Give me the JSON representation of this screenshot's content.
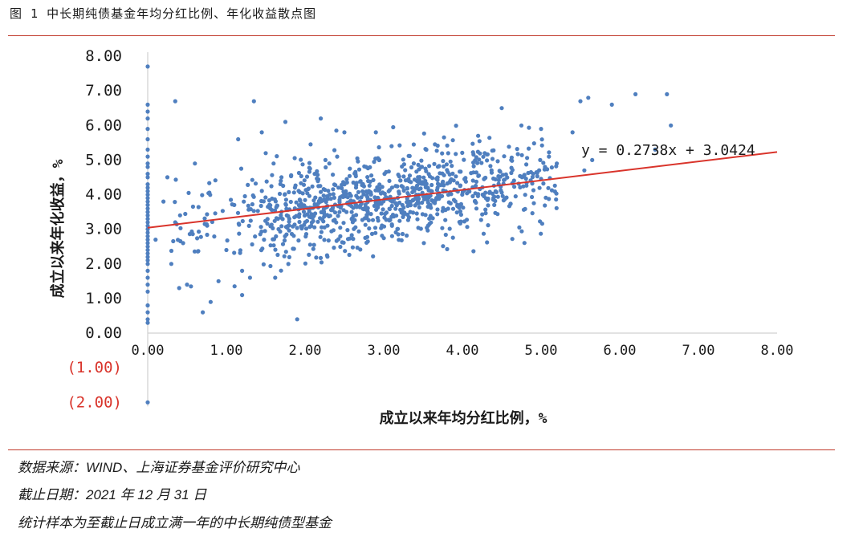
{
  "header": {
    "figure_title": "图 1 中长期纯债基金年均分红比例、年化收益散点图"
  },
  "chart_data": {
    "type": "scatter",
    "title": "图 1 中长期纯债基金年均分红比例、年化收益散点图",
    "xlabel": "成立以来年均分红比例，%",
    "ylabel": "成立以来年化收益，%",
    "xlim": [
      0,
      8
    ],
    "ylim": [
      -2,
      8
    ],
    "x_ticks": [
      "0.00",
      "1.00",
      "2.00",
      "3.00",
      "4.00",
      "5.00",
      "6.00",
      "7.00",
      "8.00"
    ],
    "y_ticks": [
      "8.00",
      "7.00",
      "6.00",
      "5.00",
      "4.00",
      "3.00",
      "2.00",
      "1.00",
      "0.00",
      "(1.00)",
      "(2.00)"
    ],
    "negative_tick_color": "#d9342b",
    "point_color": "#4f7fbf",
    "trendline": {
      "slope": 0.2738,
      "intercept": 3.0424,
      "color": "#d9342b",
      "equation": "y = 0.2738x + 3.0424"
    },
    "grid": false,
    "legend": "none",
    "points_approx_count": 1100,
    "points": [
      [
        0.0,
        7.7
      ],
      [
        0.0,
        6.6
      ],
      [
        0.0,
        6.4
      ],
      [
        0.0,
        6.2
      ],
      [
        0.0,
        5.9
      ],
      [
        0.0,
        5.6
      ],
      [
        0.0,
        5.3
      ],
      [
        0.0,
        5.1
      ],
      [
        0.0,
        4.9
      ],
      [
        0.0,
        4.8
      ],
      [
        0.0,
        4.6
      ],
      [
        0.0,
        4.5
      ],
      [
        0.0,
        4.3
      ],
      [
        0.0,
        4.2
      ],
      [
        0.0,
        4.1
      ],
      [
        0.0,
        4.0
      ],
      [
        0.0,
        3.9
      ],
      [
        0.0,
        3.8
      ],
      [
        0.0,
        3.7
      ],
      [
        0.0,
        3.6
      ],
      [
        0.0,
        3.5
      ],
      [
        0.0,
        3.4
      ],
      [
        0.0,
        3.3
      ],
      [
        0.0,
        3.2
      ],
      [
        0.0,
        3.1
      ],
      [
        0.0,
        3.0
      ],
      [
        0.0,
        2.9
      ],
      [
        0.0,
        2.8
      ],
      [
        0.0,
        2.7
      ],
      [
        0.0,
        2.6
      ],
      [
        0.0,
        2.5
      ],
      [
        0.0,
        2.4
      ],
      [
        0.0,
        2.3
      ],
      [
        0.0,
        2.2
      ],
      [
        0.0,
        2.1
      ],
      [
        0.0,
        2.0
      ],
      [
        0.0,
        1.8
      ],
      [
        0.0,
        1.6
      ],
      [
        0.0,
        1.4
      ],
      [
        0.0,
        1.2
      ],
      [
        0.0,
        0.8
      ],
      [
        0.0,
        0.6
      ],
      [
        0.0,
        0.4
      ],
      [
        0.0,
        0.3
      ],
      [
        0.0,
        -2.0
      ],
      [
        0.1,
        2.7
      ],
      [
        0.2,
        3.8
      ],
      [
        0.25,
        4.5
      ],
      [
        0.3,
        2.0
      ],
      [
        0.35,
        6.7
      ],
      [
        0.35,
        3.2
      ],
      [
        0.4,
        1.3
      ],
      [
        0.45,
        2.6
      ],
      [
        0.5,
        1.4
      ],
      [
        0.55,
        1.35
      ],
      [
        0.6,
        4.9
      ],
      [
        0.7,
        0.6
      ],
      [
        0.8,
        0.9
      ],
      [
        0.9,
        1.5
      ],
      [
        1.0,
        2.4
      ],
      [
        1.1,
        3.7
      ],
      [
        1.15,
        5.6
      ],
      [
        1.2,
        1.8
      ],
      [
        1.3,
        1.6
      ],
      [
        1.35,
        6.7
      ],
      [
        1.2,
        1.1
      ],
      [
        1.45,
        5.8
      ],
      [
        1.5,
        5.2
      ],
      [
        1.6,
        4.9
      ],
      [
        1.62,
        1.6
      ],
      [
        1.7,
        4.5
      ],
      [
        1.75,
        6.1
      ],
      [
        1.9,
        0.4
      ],
      [
        2.2,
        6.2
      ],
      [
        2.5,
        5.8
      ],
      [
        2.9,
        5.8
      ],
      [
        3.1,
        5.4
      ],
      [
        4.2,
        5.7
      ],
      [
        4.5,
        6.5
      ],
      [
        4.75,
        6.0
      ],
      [
        5.0,
        5.9
      ],
      [
        5.1,
        5.1
      ],
      [
        5.4,
        5.8
      ],
      [
        5.5,
        6.7
      ],
      [
        5.6,
        6.8
      ],
      [
        5.9,
        6.6
      ],
      [
        6.2,
        6.9
      ],
      [
        6.6,
        6.9
      ],
      [
        6.65,
        6.0
      ],
      [
        5.65,
        5.0
      ],
      [
        5.55,
        4.7
      ],
      [
        6.45,
        5.3
      ],
      [
        5.2,
        4.9
      ],
      [
        4.9,
        4.6
      ],
      [
        5.05,
        4.8
      ]
    ],
    "cloud": {
      "center_x": 3.0,
      "center_y": 3.6,
      "spread_x": 1.15,
      "spread_y": 0.65,
      "count": 1000,
      "seed": 7
    }
  },
  "footer": {
    "source": "数据来源：WIND、上海证券基金评价研究中心",
    "cutoff": "截止日期：2021 年 12 月 31 日",
    "sample": "统计样本为至截止日成立满一年的中长期纯债型基金"
  }
}
